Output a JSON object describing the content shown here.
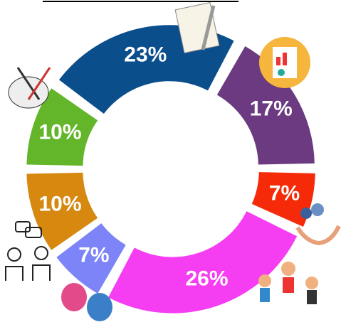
{
  "chart_data": {
    "type": "donut",
    "values": [
      23,
      17,
      7,
      26,
      7,
      10,
      10
    ],
    "value_labels": [
      "23%",
      "17%",
      "7%",
      "26%",
      "7%",
      "10%",
      "10%"
    ],
    "colors": [
      "#0b4e8c",
      "#6b3a80",
      "#f52a08",
      "#f53df2",
      "#7c84f7",
      "#d6880f",
      "#63b52a"
    ]
  }
}
